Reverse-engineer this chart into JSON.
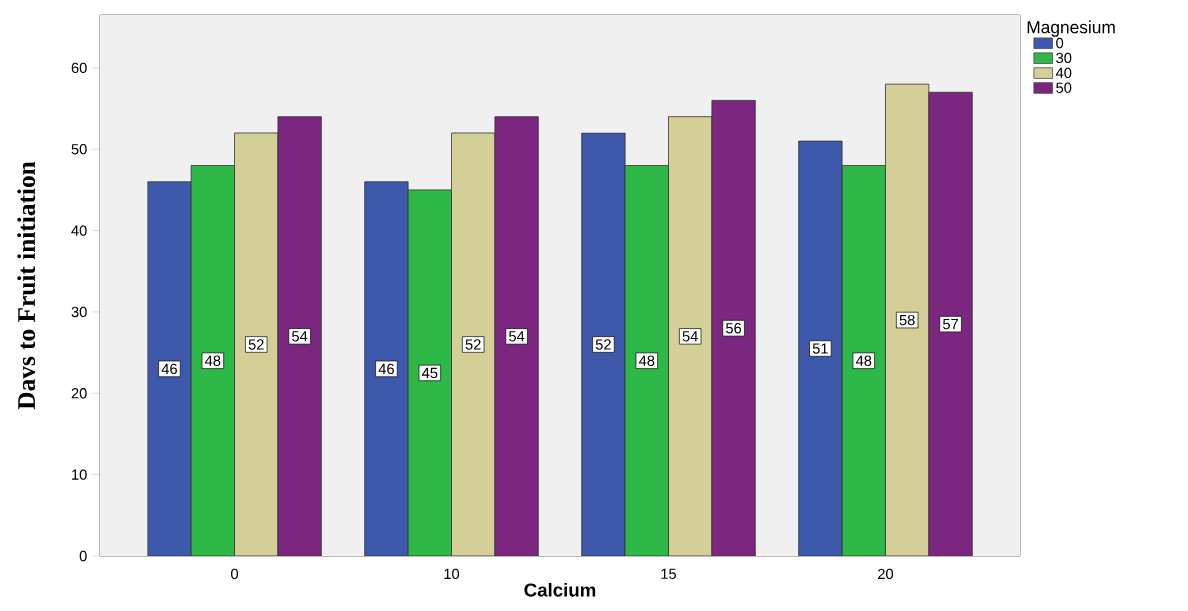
{
  "chart_data": {
    "type": "bar",
    "xlabel": "Calcium",
    "ylabel": "Davs to Fruit initiation",
    "legend_title": "Magnesium",
    "legend": "top right",
    "categories": [
      "0",
      "10",
      "15",
      "20"
    ],
    "series": [
      {
        "name": "0",
        "color": "#3e58ac",
        "values": [
          46,
          46,
          52,
          51
        ]
      },
      {
        "name": "30",
        "color": "#2eb848",
        "values": [
          48,
          45,
          48,
          48
        ]
      },
      {
        "name": "40",
        "color": "#d4cf97",
        "values": [
          52,
          52,
          54,
          58
        ]
      },
      {
        "name": "50",
        "color": "#7b277f",
        "values": [
          54,
          54,
          56,
          57
        ]
      }
    ],
    "ylim": [
      0,
      66.5
    ],
    "yticks": [
      0,
      10,
      20,
      30,
      40,
      50,
      60
    ],
    "grid": false,
    "data_labels": true
  }
}
